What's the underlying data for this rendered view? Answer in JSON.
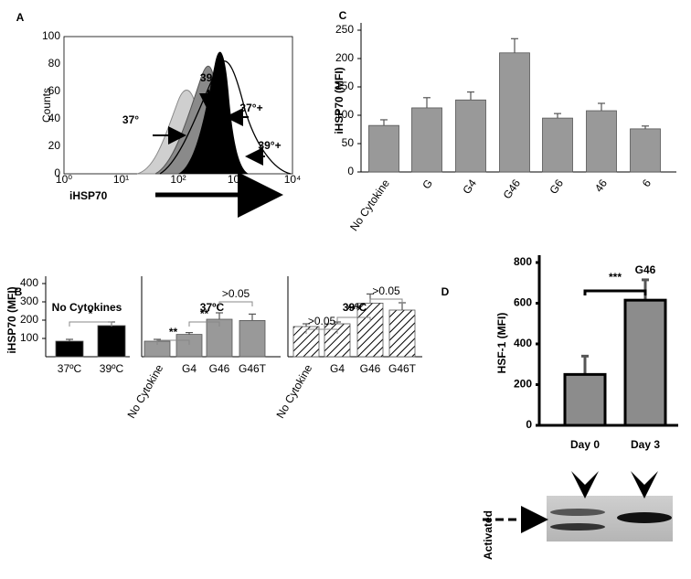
{
  "chart_data": [
    {
      "type": "bar",
      "panel_label": "C",
      "y_label": "iHSP70 (MFI)",
      "categories": [
        "No Cytokine",
        "G",
        "G4",
        "G46",
        "G6",
        "46",
        "6"
      ],
      "values": [
        82,
        113,
        127,
        210,
        95,
        108,
        76
      ],
      "errors": [
        10,
        18,
        14,
        25,
        8,
        13,
        5
      ],
      "color": "#999999",
      "ylim": [
        0,
        250
      ],
      "yticks": [
        0,
        50,
        100,
        150,
        200,
        250
      ]
    },
    {
      "type": "bar",
      "panel_label": "B",
      "title": "No Cytokines",
      "y_label": "iHSP70  (MFI)",
      "categories": [
        "37ºC",
        "39ºC"
      ],
      "values": [
        85,
        170
      ],
      "errors": [
        10,
        20
      ],
      "color": "#000000",
      "ylim": [
        0,
        400
      ],
      "yticks": [
        100,
        200,
        300,
        400
      ],
      "annotations": [
        "*"
      ]
    },
    {
      "type": "bar",
      "title": "37ºC",
      "categories": [
        "No Cytokine",
        "G4",
        "G46",
        "G46T"
      ],
      "values": [
        85,
        122,
        205,
        198
      ],
      "errors": [
        10,
        10,
        35,
        35
      ],
      "color": "#999999",
      "ylim": [
        0,
        400
      ],
      "annotations": [
        "**",
        "**",
        ">0.05"
      ]
    },
    {
      "type": "bar",
      "title": "39ºC",
      "hatch": true,
      "categories": [
        "No Cytokine",
        "G4",
        "G46",
        "G46T"
      ],
      "values": [
        165,
        180,
        293,
        255
      ],
      "errors": [
        15,
        10,
        50,
        40
      ],
      "color": "#ffffff",
      "ylim": [
        0,
        400
      ],
      "annotations": [
        ">0.05",
        "***",
        ">0.05"
      ]
    },
    {
      "type": "bar",
      "panel_label": "D",
      "y_label": "HSF-1 (MFI)",
      "categories": [
        "Day 0",
        "Day 3"
      ],
      "values": [
        250,
        615
      ],
      "errors": [
        90,
        100
      ],
      "color": "#8c8c8c",
      "ylim": [
        0,
        800
      ],
      "yticks": [
        0,
        200,
        400,
        600,
        800
      ],
      "annotations": [
        "***",
        "G46"
      ],
      "blot_label": "Activated"
    }
  ],
  "panel_a": {
    "label": "A",
    "y_axis_label": "Counts",
    "yticks": [
      0,
      20,
      40,
      60,
      80,
      100
    ],
    "xticks": [
      "10⁰",
      "10¹",
      "10²",
      "10³",
      "10⁴"
    ],
    "x_label": "iHSP70",
    "curve_labels": [
      "37°",
      "39°",
      "37°+",
      "39°+"
    ]
  }
}
